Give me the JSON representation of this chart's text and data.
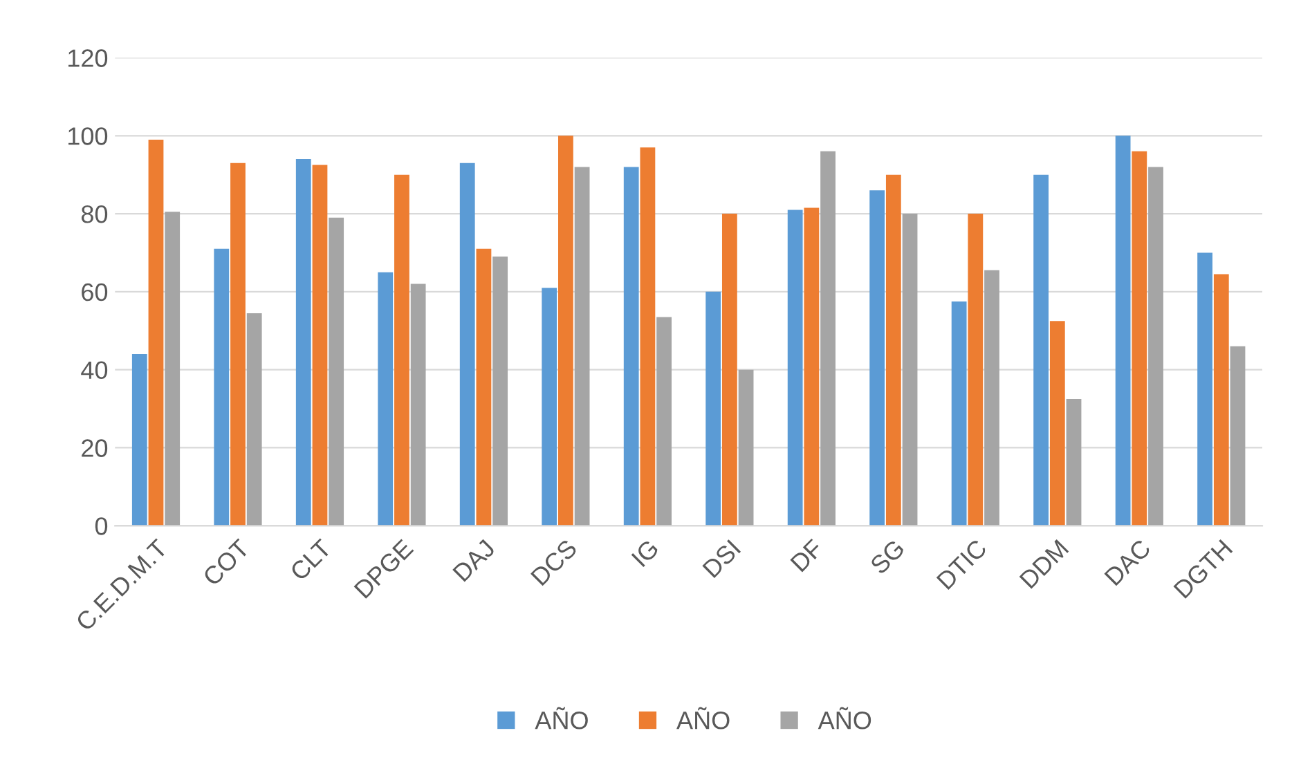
{
  "chart_data": {
    "type": "bar",
    "categories": [
      "C.E.D.M.T",
      "COT",
      "CLT",
      "DPGE",
      "DAJ",
      "DCS",
      "IG",
      "DSI",
      "DF",
      "SG",
      "DTIC",
      "DDM",
      "DAC",
      "DGTH"
    ],
    "series": [
      {
        "name": "AÑO",
        "color": "#5b9bd5",
        "values": [
          44,
          71,
          94,
          65,
          93,
          61,
          92,
          60,
          81,
          86,
          57.5,
          90,
          100,
          70
        ]
      },
      {
        "name": "AÑO",
        "color": "#ed7d31",
        "values": [
          99,
          93,
          92.5,
          90,
          71,
          100,
          97,
          80,
          81.5,
          90,
          80,
          52.5,
          96,
          64.5
        ]
      },
      {
        "name": "AÑO",
        "color": "#a5a5a5",
        "values": [
          80.5,
          54.5,
          79,
          62,
          69,
          92,
          53.5,
          40,
          96,
          80,
          65.5,
          32.5,
          92,
          46
        ]
      }
    ],
    "ylim": [
      0,
      120
    ],
    "yticks": [
      0,
      20,
      40,
      60,
      80,
      100,
      120
    ],
    "grid": "y",
    "legend": "bottom"
  }
}
